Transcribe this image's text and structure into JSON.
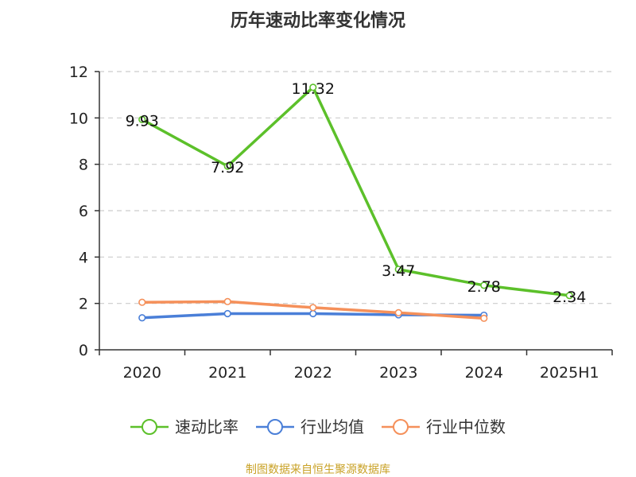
{
  "title": "历年速动比率变化情况",
  "source": "制图数据来自恒生聚源数据库",
  "colors": {
    "series_1": "#5cc02a",
    "series_2": "#4a7fd8",
    "series_3": "#f5905a",
    "axis": "#333333",
    "grid": "#cccccc",
    "source_text": "#c9a227"
  },
  "chart_data": {
    "type": "line",
    "categories": [
      "2020",
      "2021",
      "2022",
      "2023",
      "2024",
      "2025H1"
    ],
    "ylim": [
      0,
      12
    ],
    "yticks": [
      0,
      2,
      4,
      6,
      8,
      10,
      12
    ],
    "grid": true,
    "legend_position": "bottom",
    "series": [
      {
        "name": "速动比率",
        "values": [
          9.93,
          7.92,
          11.32,
          3.47,
          2.78,
          2.34
        ],
        "labels": [
          "9.93",
          "7.92",
          "11.32",
          "3.47",
          "2.78",
          "2.34"
        ]
      },
      {
        "name": "行业均值",
        "values": [
          1.38,
          1.56,
          1.56,
          1.51,
          1.49,
          null
        ]
      },
      {
        "name": "行业中位数",
        "values": [
          2.05,
          2.08,
          1.82,
          1.6,
          1.36,
          null
        ]
      }
    ]
  }
}
